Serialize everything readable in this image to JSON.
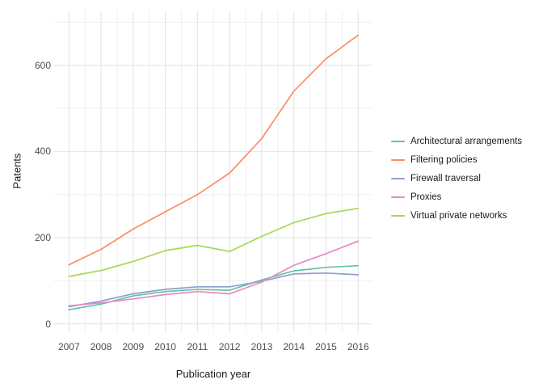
{
  "chart_data": {
    "type": "line",
    "title": "",
    "xlabel": "Publication year",
    "ylabel": "Patents",
    "x": [
      2007,
      2008,
      2009,
      2010,
      2011,
      2012,
      2013,
      2014,
      2015,
      2016
    ],
    "x_tick_labels": [
      "2007",
      "2008",
      "2009",
      "2010",
      "2011",
      "2012",
      "2013",
      "2014",
      "2015",
      "2016"
    ],
    "y_tick_labels": [
      "0",
      "200",
      "400",
      "600"
    ],
    "y_tick_values": [
      0,
      200,
      400,
      600
    ],
    "y_minor_gridline_values": [
      100,
      300,
      500,
      700
    ],
    "ylim": [
      0,
      725
    ],
    "xlim": [
      2006.55,
      2016.45
    ],
    "grid": "major+minor",
    "legend_position": "right",
    "series": [
      {
        "name": "Architectural arrangements",
        "color": "#66C2A5",
        "values": [
          33,
          46,
          65,
          75,
          80,
          78,
          102,
          123,
          131,
          135
        ]
      },
      {
        "name": "Filtering policies",
        "color": "#FC8D62",
        "values": [
          137,
          173,
          220,
          260,
          300,
          350,
          430,
          540,
          615,
          670
        ]
      },
      {
        "name": "Firewall traversal",
        "color": "#8DA0CB",
        "values": [
          40,
          53,
          70,
          80,
          86,
          86,
          99,
          116,
          118,
          114
        ]
      },
      {
        "name": "Proxies",
        "color": "#E78AC3",
        "values": [
          42,
          49,
          58,
          68,
          75,
          70,
          97,
          136,
          163,
          192
        ]
      },
      {
        "name": "Virtual private networks",
        "color": "#A6D854",
        "values": [
          110,
          124,
          145,
          170,
          182,
          168,
          203,
          235,
          256,
          268
        ]
      }
    ],
    "colors": {
      "background": "#FFFFFF",
      "grid_major": "#E4E4E4",
      "grid_minor": "#F0F0F0",
      "tick_label": "#4D4D4D",
      "axis_title": "#1A1A1A",
      "legend_text": "#1A1A1A"
    }
  }
}
